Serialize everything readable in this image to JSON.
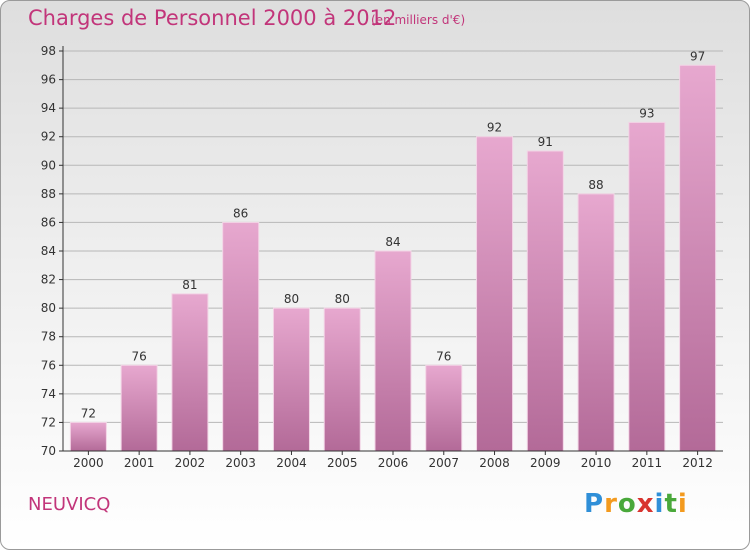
{
  "header": {
    "title": "Charges de Personnel 2000 à 2012",
    "subtitle": "(en milliers d'€)"
  },
  "footer": {
    "commune": "NEUVICQ",
    "logo": {
      "letters": [
        "P",
        "r",
        "o",
        "x",
        "i",
        "t",
        "i"
      ],
      "colors": [
        "#2f8fd8",
        "#f39a1e",
        "#49a83a",
        "#d8342f",
        "#2f8fd8",
        "#49a83a",
        "#f39a1e"
      ]
    }
  },
  "colors": {
    "bar_top": "#e7a8cf",
    "bar_bottom": "#b36a98",
    "text": "#c2357a",
    "axis": "#333333",
    "grid": "#b7b7b7"
  },
  "chart_data": {
    "type": "bar",
    "categories": [
      "2000",
      "2001",
      "2002",
      "2003",
      "2004",
      "2005",
      "2006",
      "2007",
      "2008",
      "2009",
      "2010",
      "2011",
      "2012"
    ],
    "values": [
      72,
      76,
      81,
      86,
      80,
      80,
      84,
      76,
      92,
      91,
      88,
      93,
      97
    ],
    "ylim": [
      70,
      98
    ],
    "yticks": [
      70,
      72,
      74,
      76,
      78,
      80,
      82,
      84,
      86,
      88,
      90,
      92,
      94,
      96,
      98
    ],
    "grid": true
  }
}
